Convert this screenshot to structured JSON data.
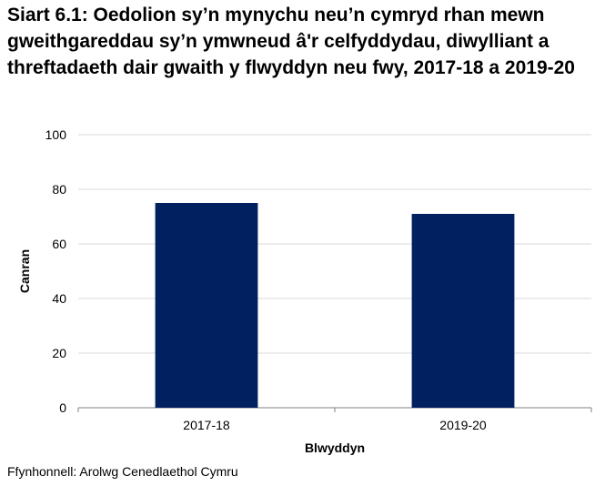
{
  "chart_data": {
    "type": "bar",
    "title": "Siart 6.1: Oedolion sy’n mynychu neu’n cymryd rhan mewn gweithgareddau sy’n ymwneud â'r celfyddydau, diwylliant a threftadaeth dair gwaith y flwyddyn neu fwy, 2017-18 a 2019-20",
    "categories": [
      "2017-18",
      "2019-20"
    ],
    "values": [
      75,
      71
    ],
    "xlabel": "Blwyddyn",
    "ylabel": "Canran",
    "ylim": [
      0,
      100
    ],
    "yticks": [
      0,
      20,
      40,
      60,
      80,
      100
    ],
    "bar_color": "#002060",
    "grid": true,
    "legend": "none"
  },
  "source": "Ffynhonnell: Arolwg Cenedlaethol Cymru"
}
